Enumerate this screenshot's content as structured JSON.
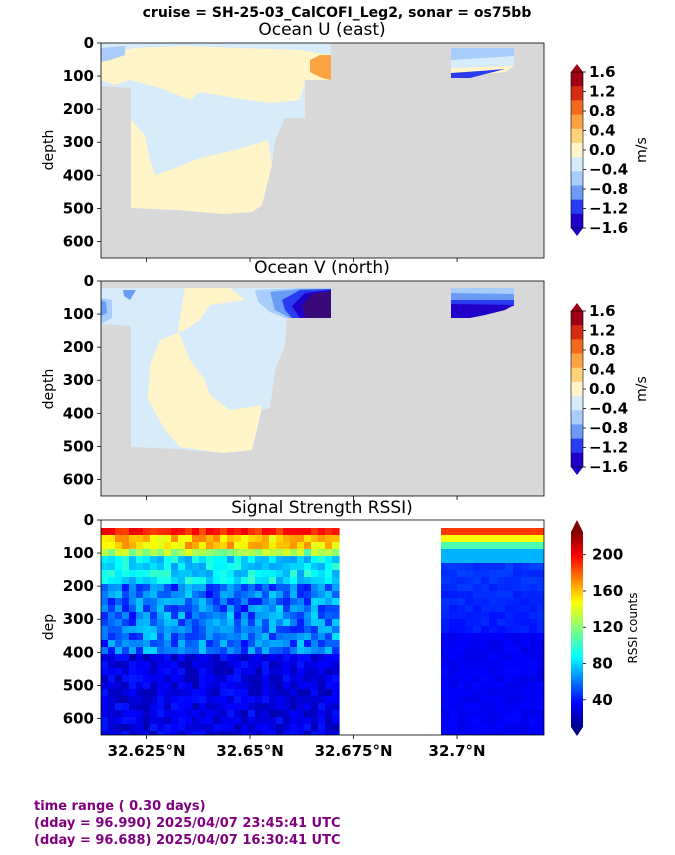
{
  "suptitle": "cruise = SH-25-03_CalCOFI_Leg2,  sonar = os75bb",
  "footer": {
    "line1": "time range ( 0.30 days)",
    "line2": "(dday = 96.990) 2025/04/07 23:45:41 UTC",
    "line3": "(dday = 96.688) 2025/04/07 16:30:41 UTC"
  },
  "colors": {
    "nodata": "#d8d8d8",
    "frame": "#000000",
    "u_levels": [
      "#2000c8",
      "#2a3cf0",
      "#6b9cf5",
      "#a8cdfb",
      "#d6ecfb",
      "#fff5c8",
      "#fed27a",
      "#fba243",
      "#f26a20",
      "#d42b12",
      "#9e0015"
    ]
  },
  "chart_data": [
    {
      "type": "heatmap",
      "name": "Ocean U (east)",
      "title": "Ocean U (east)",
      "ylabel": "depth",
      "ylim": [
        650,
        0
      ],
      "yticks": [
        0,
        100,
        200,
        300,
        400,
        500,
        600
      ],
      "xlim": [
        32.614,
        32.721
      ],
      "colorbar": {
        "label": "m/s",
        "ticks": [
          "1.6",
          "1.2",
          "0.8",
          "0.4",
          "0.0",
          "−0.4",
          "−0.8",
          "−1.2",
          "−1.6"
        ]
      }
    },
    {
      "type": "heatmap",
      "name": "Ocean V (north)",
      "title": "Ocean V (north)",
      "ylabel": "depth",
      "ylim": [
        650,
        0
      ],
      "yticks": [
        0,
        100,
        200,
        300,
        400,
        500,
        600
      ],
      "xlim": [
        32.614,
        32.721
      ],
      "colorbar": {
        "label": "m/s",
        "ticks": [
          "1.6",
          "1.2",
          "0.8",
          "0.4",
          "0.0",
          "−0.4",
          "−0.8",
          "−1.2",
          "−1.6"
        ]
      }
    },
    {
      "type": "heatmap",
      "name": "Signal Strength RSSI)",
      "title": "Signal Strength RSSI)",
      "ylabel": "dep",
      "ylim": [
        650,
        0
      ],
      "yticks": [
        0,
        100,
        200,
        300,
        400,
        500,
        600
      ],
      "xlim": [
        32.614,
        32.721
      ],
      "xticks": [
        {
          "value": 32.625,
          "label": "32.625°N"
        },
        {
          "value": 32.65,
          "label": "32.65°N"
        },
        {
          "value": 32.675,
          "label": "32.675°N"
        },
        {
          "value": 32.7,
          "label": "32.7°N"
        }
      ],
      "colorbar": {
        "label": "RSSI counts",
        "ticks": [
          "200",
          "160",
          "120",
          "80",
          "40"
        ],
        "range": [
          10,
          225
        ]
      }
    }
  ]
}
